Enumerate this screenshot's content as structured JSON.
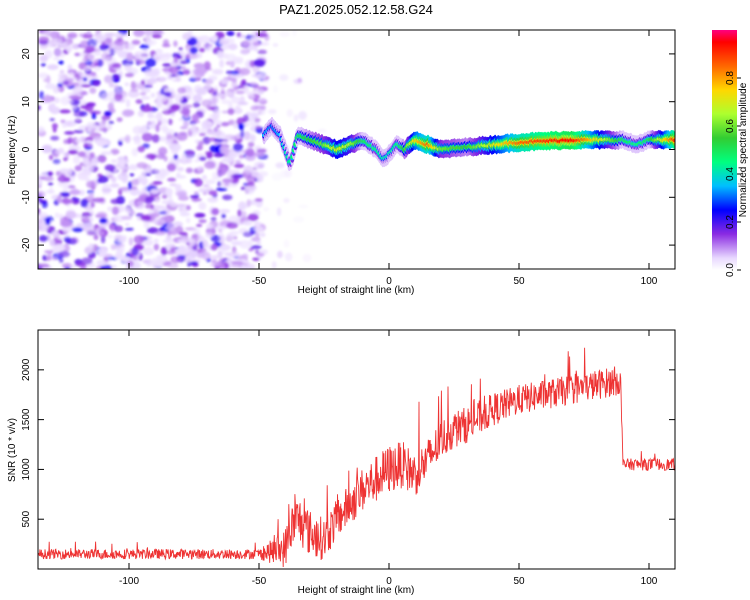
{
  "title": "PAZ1.2025.052.12.58.G24",
  "chart_data": [
    {
      "type": "heatmap",
      "xlabel": "Height of straight line (km)",
      "ylabel": "Frequency (Hz)",
      "xlim": [
        -135,
        110
      ],
      "ylim": [
        -25,
        25
      ],
      "x_ticks": [
        -100,
        -50,
        0,
        50,
        100
      ],
      "y_ticks": [
        -20,
        -10,
        0,
        10,
        20
      ],
      "colorbar": {
        "label": "Normalized spectral amplitude",
        "range": [
          0,
          1
        ],
        "ticks": [
          0.0,
          0.2,
          0.4,
          0.6,
          0.8
        ],
        "tick_labels": [
          "0.0",
          "0.2",
          "0.4",
          "0.6",
          "0.8"
        ],
        "colormap": "rainbow"
      },
      "noise_region_x": [
        -135,
        -48
      ],
      "ridge": {
        "x": [
          -48,
          -45,
          -42,
          -40,
          -38,
          -35,
          -30,
          -25,
          -20,
          -15,
          -10,
          -5,
          -2,
          0,
          3,
          6,
          10,
          15,
          20,
          30,
          50,
          70,
          90,
          95,
          100,
          110
        ],
        "frequency": [
          3,
          5,
          3,
          0,
          -3,
          3,
          2,
          1,
          0,
          1,
          2,
          0,
          -2,
          -1,
          1,
          0,
          2,
          1,
          0,
          0.5,
          1.5,
          2,
          2,
          1,
          2,
          2
        ],
        "amplitude": [
          0.35,
          0.3,
          0.35,
          0.4,
          0.45,
          0.5,
          0.55,
          0.6,
          0.7,
          0.65,
          0.5,
          0.45,
          0.4,
          0.4,
          0.45,
          0.55,
          0.75,
          0.85,
          0.6,
          0.55,
          0.85,
          0.95,
          0.5,
          0.45,
          0.5,
          0.9
        ]
      }
    },
    {
      "type": "line",
      "xlabel": "Height of straight line (km)",
      "ylabel": "SNR (10 * v/v)",
      "xlim": [
        -135,
        110
      ],
      "ylim": [
        0,
        2400
      ],
      "x_ticks": [
        -100,
        -50,
        0,
        50,
        100
      ],
      "y_ticks": [
        500,
        1000,
        1500,
        2000
      ],
      "color": "#ee3333",
      "trend": {
        "x": [
          -135,
          -50,
          -40,
          -38,
          -35,
          -30,
          -25,
          -20,
          -15,
          -10,
          -5,
          0,
          5,
          10,
          15,
          20,
          25,
          30,
          40,
          50,
          60,
          70,
          80,
          89,
          90,
          95,
          100,
          110
        ],
        "y": [
          150,
          150,
          200,
          400,
          500,
          350,
          300,
          500,
          650,
          800,
          900,
          1000,
          1050,
          950,
          1100,
          1300,
          1400,
          1450,
          1600,
          1700,
          1750,
          1800,
          1850,
          1900,
          1050,
          1050,
          1050,
          1050
        ]
      },
      "noise_amplitude": {
        "x": [
          -135,
          -50,
          -40,
          -35,
          -20,
          0,
          20,
          50,
          89,
          90,
          110
        ],
        "y": [
          50,
          50,
          200,
          250,
          200,
          250,
          200,
          150,
          150,
          60,
          60
        ]
      }
    }
  ]
}
